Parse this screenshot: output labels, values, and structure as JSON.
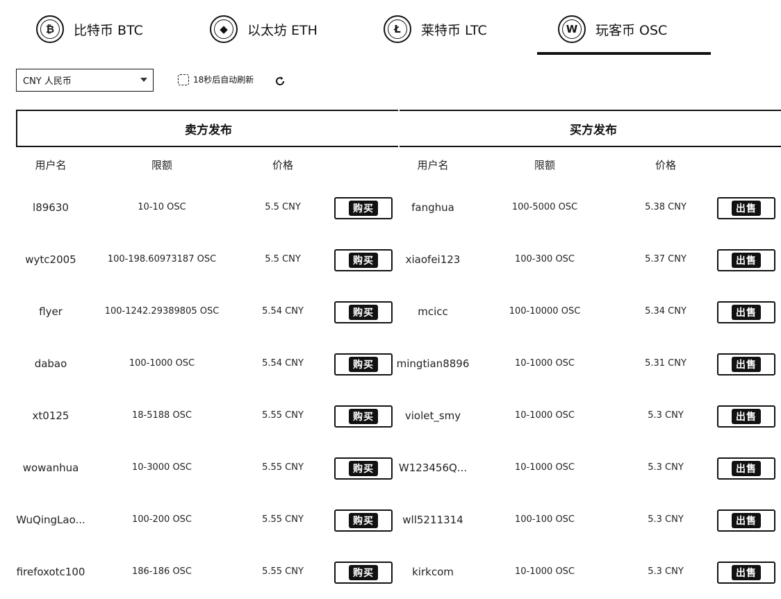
{
  "tabs": [
    {
      "label": "比特币  BTC",
      "icon": "bitcoin-icon",
      "glyph": "₿"
    },
    {
      "label": "以太坊  ETH",
      "icon": "ethereum-icon",
      "glyph": "◆"
    },
    {
      "label": "莱特币  LTC",
      "icon": "litecoin-icon",
      "glyph": "Ł"
    },
    {
      "label": "玩客币  OSC",
      "icon": "wankecoin-icon",
      "glyph": "W",
      "active": true
    }
  ],
  "toolbar": {
    "currency": "CNY 人民币",
    "refresh_text": "18秒后自动刷新"
  },
  "sell_panel": {
    "title": "卖方发布",
    "columns": [
      "用户名",
      "限额",
      "价格"
    ],
    "action": "购买",
    "rows": [
      {
        "user": "l89630",
        "limit": "10-10 OSC",
        "price": "5.5 CNY"
      },
      {
        "user": "wytc2005",
        "limit": "100-198.60973187 OSC",
        "price": "5.5 CNY"
      },
      {
        "user": "flyer",
        "limit": "100-1242.29389805 OSC",
        "price": "5.54 CNY"
      },
      {
        "user": "dabao",
        "limit": "100-1000 OSC",
        "price": "5.54 CNY"
      },
      {
        "user": "xt0125",
        "limit": "18-5188 OSC",
        "price": "5.55 CNY"
      },
      {
        "user": "wowanhua",
        "limit": "10-3000 OSC",
        "price": "5.55 CNY"
      },
      {
        "user": "WuQingLao...",
        "limit": "100-200 OSC",
        "price": "5.55 CNY"
      },
      {
        "user": "firefoxotc100",
        "limit": "186-186 OSC",
        "price": "5.55 CNY"
      }
    ]
  },
  "buy_panel": {
    "title": "买方发布",
    "columns": [
      "用户名",
      "限额",
      "价格"
    ],
    "action": "出售",
    "rows": [
      {
        "user": "fanghua",
        "limit": "100-5000 OSC",
        "price": "5.38 CNY"
      },
      {
        "user": "xiaofei123",
        "limit": "100-300 OSC",
        "price": "5.37 CNY"
      },
      {
        "user": "mcicc",
        "limit": "100-10000 OSC",
        "price": "5.34 CNY"
      },
      {
        "user": "mingtian8896",
        "limit": "10-1000 OSC",
        "price": "5.31 CNY"
      },
      {
        "user": "violet_smy",
        "limit": "10-1000 OSC",
        "price": "5.3 CNY"
      },
      {
        "user": "W123456Q...",
        "limit": "10-1000 OSC",
        "price": "5.3 CNY"
      },
      {
        "user": "wll5211314",
        "limit": "100-100 OSC",
        "price": "5.3 CNY"
      },
      {
        "user": "kirkcom",
        "limit": "10-1000 OSC",
        "price": "5.3 CNY"
      }
    ]
  }
}
